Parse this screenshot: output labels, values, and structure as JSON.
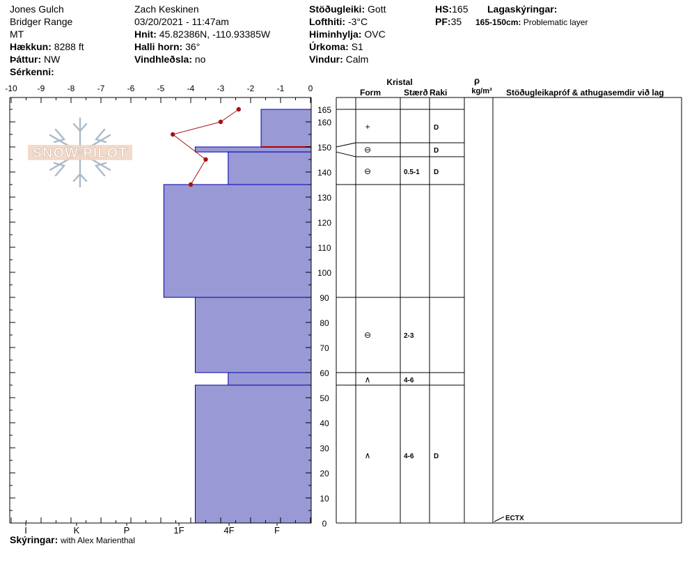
{
  "header": {
    "location": "Jones Gulch",
    "range": "Bridger Range",
    "state": "MT",
    "elevation_label": "Hækkun:",
    "elevation": "8288 ft",
    "aspect_label": "Þáttur:",
    "aspect": "NW",
    "features_label": "Sérkenni:",
    "observer": "Zach Keskinen",
    "datetime": "03/20/2021 - 11:47am",
    "coords_label": "Hnit:",
    "coords": "45.82386N, -110.93385W",
    "slope_label": "Halli horn:",
    "slope": "36°",
    "wind_loading_label": "Vindhleðsla:",
    "wind_loading": "no",
    "stability_label": "Stöðugleiki:",
    "stability": "Gott",
    "air_temp_label": "Lofthiti:",
    "air_temp": "-3°C",
    "sky_label": "Himinhylja:",
    "sky": "OVC",
    "precip_label": "Úrkoma:",
    "precip": "S1",
    "wind_label": "Vindur:",
    "wind": "Calm",
    "hs_label": "HS:",
    "hs": "165",
    "pf_label": "PF:",
    "pf": "35",
    "layer_notes_label": "Lagaskýringar:",
    "layer_note_range": "165-150cm:",
    "layer_note_text": "Problematic layer",
    "notes_label": "Skýringar:",
    "notes": "with Alex Marienthal"
  },
  "logo": {
    "text": "SNOW PILOT"
  },
  "columns": {
    "crystal": "Kristal",
    "form": "Form",
    "size": "Stærð",
    "moisture": "Raki",
    "density_symbol": "ρ",
    "density_unit": "kg/m³",
    "tests": "Stöðugleikapróf & athugasemdir við lag"
  },
  "chart_data": {
    "type": "bar",
    "title": "",
    "temp_axis": {
      "ticks": [
        "-10",
        "-9",
        "-8",
        "-7",
        "-6",
        "-5",
        "-4",
        "-3",
        "-2",
        "-1",
        "0"
      ],
      "range": [
        -10,
        0
      ]
    },
    "depth_axis": {
      "ticks": [
        0,
        10,
        20,
        30,
        40,
        50,
        60,
        70,
        80,
        90,
        100,
        110,
        120,
        130,
        140,
        150,
        160,
        165
      ],
      "range": [
        0,
        165
      ]
    },
    "hardness_axis": {
      "ticks": [
        "I",
        "K",
        "P",
        "1F",
        "4F",
        "F"
      ]
    },
    "layers": [
      {
        "top": 165,
        "bottom": 150,
        "hardness_temp": -1.65,
        "form": "+",
        "size": "",
        "moisture": "D"
      },
      {
        "top": 150,
        "bottom": 148,
        "hardness_temp": -3.85,
        "form": "⊖",
        "size": "",
        "moisture": "D"
      },
      {
        "top": 148,
        "bottom": 135,
        "hardness_temp": -2.75,
        "form": "⊖",
        "size": "0.5-1",
        "moisture": "D"
      },
      {
        "top": 135,
        "bottom": 90,
        "hardness_temp": -4.9,
        "form": "",
        "size": "",
        "moisture": ""
      },
      {
        "top": 90,
        "bottom": 60,
        "hardness_temp": -3.85,
        "form": "⊖",
        "size": "2-3",
        "moisture": ""
      },
      {
        "top": 60,
        "bottom": 55,
        "hardness_temp": -2.75,
        "form": "∧",
        "size": "4-6",
        "moisture": ""
      },
      {
        "top": 55,
        "bottom": 0,
        "hardness_temp": -3.85,
        "form": "∧",
        "size": "4-6",
        "moisture": "D"
      }
    ],
    "temperature_profile": [
      {
        "depth": 165,
        "temp": -2.4
      },
      {
        "depth": 160,
        "temp": -3.0
      },
      {
        "depth": 155,
        "temp": -4.6
      },
      {
        "depth": 145,
        "temp": -3.5
      },
      {
        "depth": 135,
        "temp": -4.0
      }
    ],
    "problematic_layer_depth": 150,
    "test_results": [
      {
        "depth": 0,
        "text": "ECTX"
      }
    ],
    "colors": {
      "hardness_fill": "#9999d5",
      "hardness_edge": "#0000aa",
      "temp_line": "#aa1111",
      "problem_line": "#aa0000"
    }
  }
}
